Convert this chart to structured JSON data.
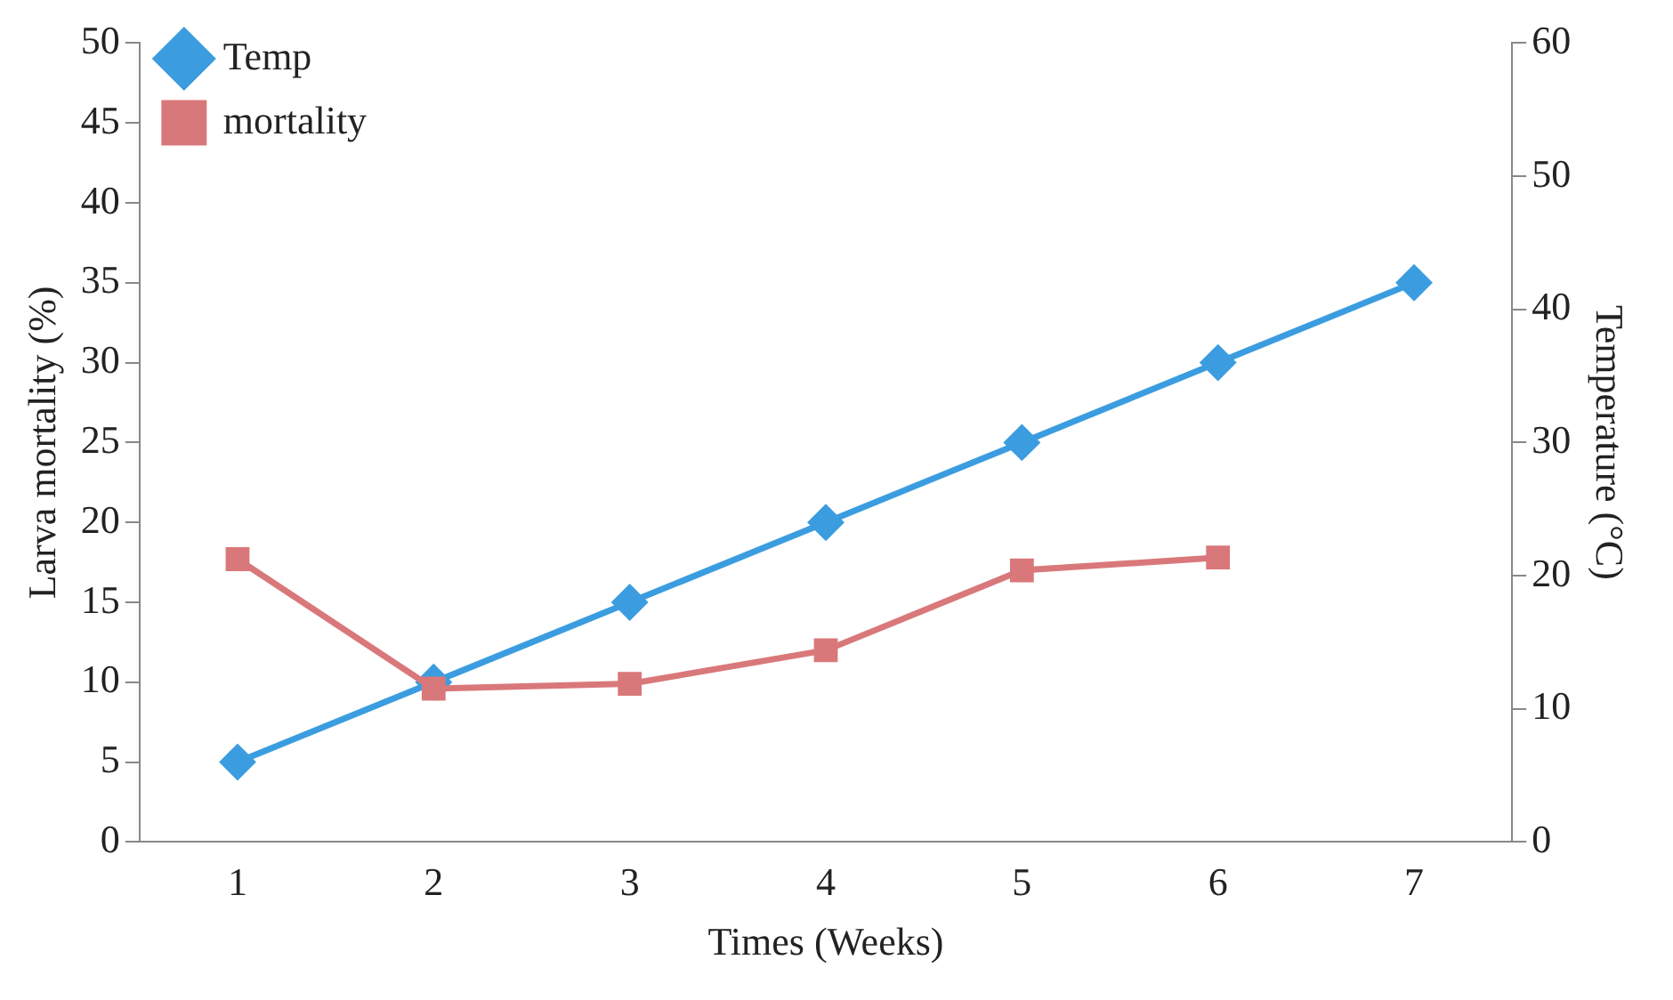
{
  "chart_data": {
    "type": "line",
    "xlabel": "Times (Weeks)",
    "ylabel": "Larva mortality (%)",
    "y2label": "Temperature (°C)",
    "categories": [
      "1",
      "2",
      "3",
      "4",
      "5",
      "6",
      "7"
    ],
    "series": [
      {
        "name": "Temp",
        "color": "#3b9de0",
        "axis": "y2",
        "marker": "diamond",
        "values": [
          6,
          12,
          18,
          24,
          30,
          36,
          42
        ]
      },
      {
        "name": "mortality",
        "color": "#d9787a",
        "axis": "y",
        "marker": "square",
        "values": [
          17.7,
          9.6,
          9.9,
          12.0,
          17.0,
          17.8,
          null
        ]
      }
    ],
    "ylim": [
      0,
      50
    ],
    "yticks": [
      0,
      5,
      10,
      15,
      20,
      25,
      30,
      35,
      40,
      45,
      50
    ],
    "y2lim": [
      0,
      60
    ],
    "y2ticks": [
      0,
      10,
      20,
      30,
      40,
      50,
      60
    ],
    "grid": false,
    "legend": "top left",
    "line_style": "solid"
  }
}
